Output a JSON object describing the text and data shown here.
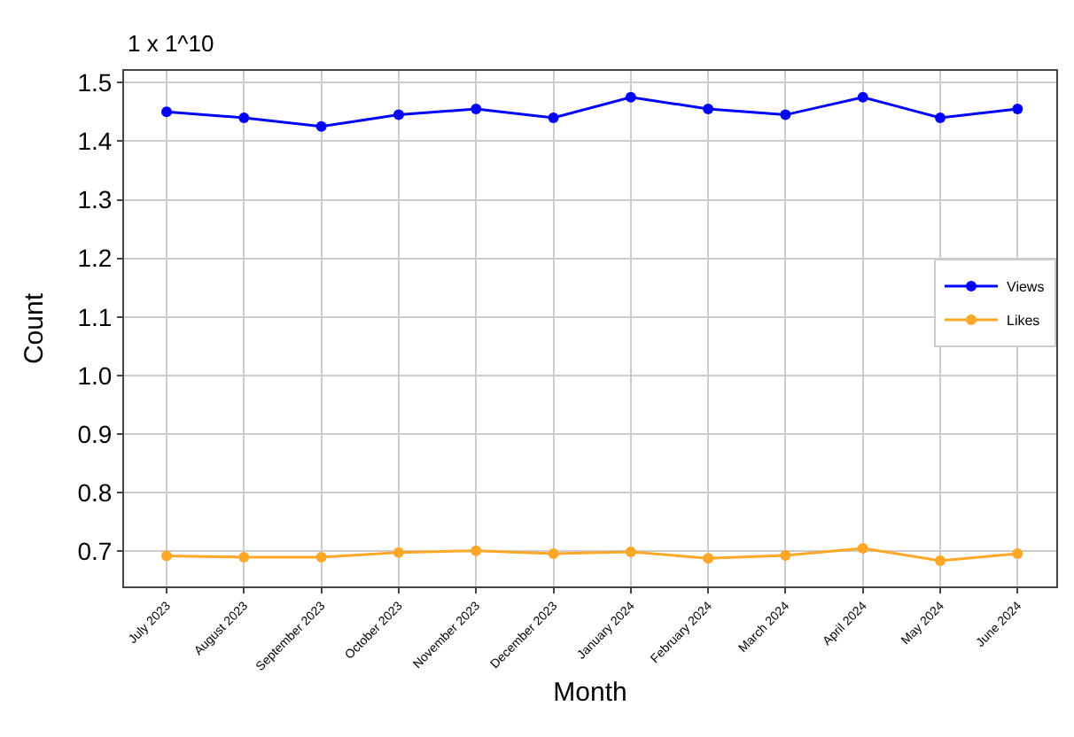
{
  "chart_data": {
    "type": "line",
    "annotations": [
      "1 x 1^10"
    ],
    "xlabel": "Month",
    "ylabel": "Count",
    "categories": [
      "July 2023",
      "August 2023",
      "September 2023",
      "October 2023",
      "November 2023",
      "December 2023",
      "January 2024",
      "February 2024",
      "March 2024",
      "April 2024",
      "May 2024",
      "June 2024"
    ],
    "series": [
      {
        "name": "Views",
        "color": "#0000ff",
        "values": [
          1.45,
          1.44,
          1.425,
          1.445,
          1.455,
          1.44,
          1.475,
          1.455,
          1.445,
          1.475,
          1.44,
          1.455
        ]
      },
      {
        "name": "Likes",
        "color": "#ffa726",
        "values": [
          0.692,
          0.69,
          0.69,
          0.698,
          0.701,
          0.696,
          0.699,
          0.688,
          0.693,
          0.705,
          0.684,
          0.696
        ]
      }
    ],
    "ylim": [
      0.64,
      1.52
    ],
    "yticks": [
      0.7,
      0.8,
      0.9,
      {
        "value": 1,
        "label": "1.0"
      },
      1.1,
      1.2,
      1.3,
      1.4,
      1.5
    ],
    "grid": true,
    "legend": "right",
    "marker": "circle",
    "line_style": "solid"
  }
}
